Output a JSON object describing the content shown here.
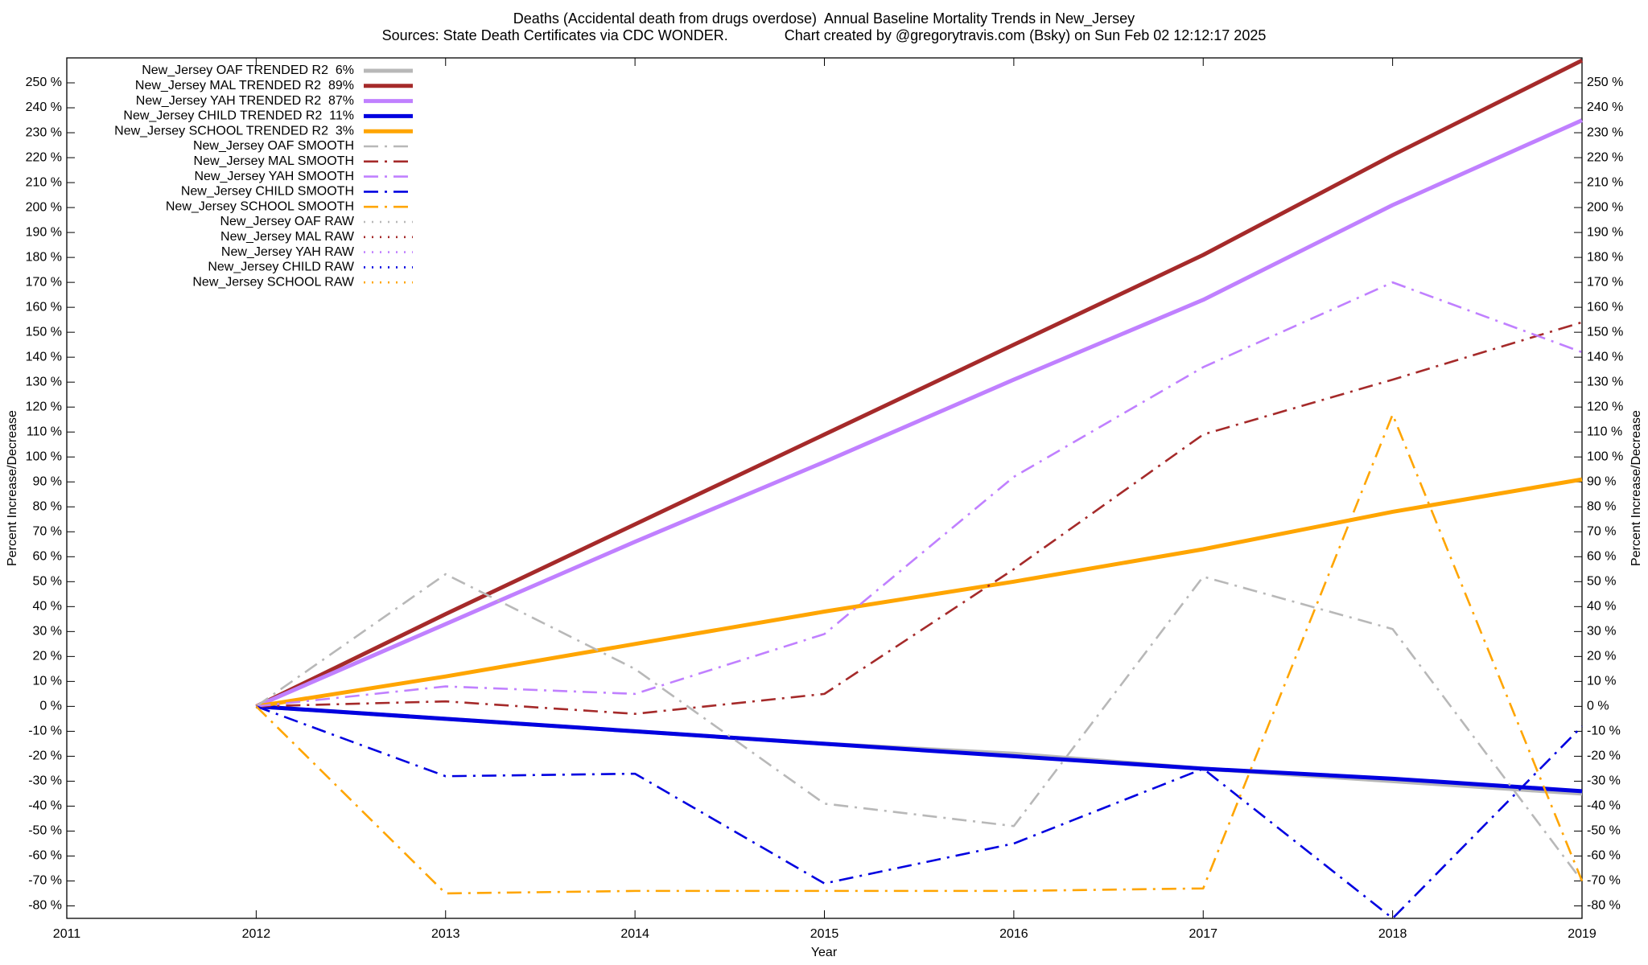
{
  "chart_data": {
    "type": "line",
    "title": "Deaths (Accidental death from drugs overdose)  Annual Baseline Mortality Trends in New_Jersey",
    "subtitle": "Sources: State Death Certificates via CDC WONDER.              Chart created by @gregorytravis.com (Bsky) on Sun Feb 02 12:12:17 2025",
    "x_label": "Year",
    "y_label": "Percent Increase/Decrease",
    "x": [
      2012,
      2013,
      2014,
      2015,
      2016,
      2017,
      2018,
      2019
    ],
    "xlim": [
      2011,
      2019
    ],
    "xticks": [
      2011,
      2012,
      2013,
      2014,
      2015,
      2016,
      2017,
      2018,
      2019
    ],
    "ylim": [
      -85,
      260
    ],
    "yticks": [
      {
        "value": -80,
        "label": "-80 %"
      },
      {
        "value": -70,
        "label": "-70 %"
      },
      {
        "value": -60,
        "label": "-60 %"
      },
      {
        "value": -50,
        "label": "-50 %"
      },
      {
        "value": -40,
        "label": "-40 %"
      },
      {
        "value": -30,
        "label": "-30 %"
      },
      {
        "value": -20,
        "label": "-20 %"
      },
      {
        "value": -10,
        "label": "-10 %"
      },
      {
        "value": 0,
        "label": "0 %"
      },
      {
        "value": 10,
        "label": "10 %"
      },
      {
        "value": 20,
        "label": "20 %"
      },
      {
        "value": 30,
        "label": "30 %"
      },
      {
        "value": 40,
        "label": "40 %"
      },
      {
        "value": 50,
        "label": "50 %"
      },
      {
        "value": 60,
        "label": "60 %"
      },
      {
        "value": 70,
        "label": "70 %"
      },
      {
        "value": 80,
        "label": "80 %"
      },
      {
        "value": 90,
        "label": "90 %"
      },
      {
        "value": 100,
        "label": "100 %"
      },
      {
        "value": 110,
        "label": "110 %"
      },
      {
        "value": 120,
        "label": "120 %"
      },
      {
        "value": 130,
        "label": "130 %"
      },
      {
        "value": 140,
        "label": "140 %"
      },
      {
        "value": 150,
        "label": "150 %"
      },
      {
        "value": 160,
        "label": "160 %"
      },
      {
        "value": 170,
        "label": "170 %"
      },
      {
        "value": 180,
        "label": "180 %"
      },
      {
        "value": 190,
        "label": "190 %"
      },
      {
        "value": 200,
        "label": "200 %"
      },
      {
        "value": 210,
        "label": "210 %"
      },
      {
        "value": 220,
        "label": "220 %"
      },
      {
        "value": 230,
        "label": "230 %"
      },
      {
        "value": 240,
        "label": "240 %"
      },
      {
        "value": 250,
        "label": "250 %"
      }
    ],
    "grid": false,
    "legend": "upper left",
    "series": [
      {
        "name": "New_Jersey OAF TRENDED R2  6%",
        "color": "#b8b8b8",
        "style": "solid",
        "values": [
          0,
          -5,
          -10,
          -15,
          -19,
          -25,
          -30,
          -35
        ]
      },
      {
        "name": "New_Jersey MAL TRENDED R2  89%",
        "color": "#a52a2a",
        "style": "solid",
        "values": [
          0,
          37,
          73,
          109,
          145,
          181,
          221,
          259
        ]
      },
      {
        "name": "New_Jersey YAH TRENDED R2  87%",
        "color": "#c080ff",
        "style": "solid",
        "values": [
          0,
          33,
          66,
          98,
          131,
          163,
          201,
          235
        ]
      },
      {
        "name": "New_Jersey CHILD TRENDED R2  11%",
        "color": "#0000e0",
        "style": "solid",
        "values": [
          0,
          -5,
          -10,
          -15,
          -20,
          -25,
          -29,
          -34
        ]
      },
      {
        "name": "New_Jersey SCHOOL TRENDED R2  3%",
        "color": "#ffa500",
        "style": "solid",
        "values": [
          0,
          12,
          25,
          38,
          50,
          63,
          78,
          91
        ]
      },
      {
        "name": "New_Jersey OAF SMOOTH",
        "color": "#b8b8b8",
        "style": "dashed",
        "values": [
          0,
          53,
          15,
          -39,
          -48,
          52,
          31,
          -70
        ]
      },
      {
        "name": "New_Jersey MAL SMOOTH",
        "color": "#a52a2a",
        "style": "dashed",
        "values": [
          0,
          2,
          -3,
          5,
          55,
          109,
          131,
          154
        ]
      },
      {
        "name": "New_Jersey YAH SMOOTH",
        "color": "#c080ff",
        "style": "dashed",
        "values": [
          0,
          8,
          5,
          29,
          92,
          136,
          170,
          142
        ]
      },
      {
        "name": "New_Jersey CHILD SMOOTH",
        "color": "#0000e0",
        "style": "dashed",
        "values": [
          0,
          -28,
          -27,
          -71,
          -55,
          -25,
          -85,
          -8
        ]
      },
      {
        "name": "New_Jersey SCHOOL SMOOTH",
        "color": "#ffa500",
        "style": "dashed",
        "values": [
          0,
          -75,
          -74,
          -74,
          -74,
          -73,
          117,
          -70
        ]
      },
      {
        "name": "New_Jersey OAF RAW",
        "color": "#b8b8b8",
        "style": "dotted",
        "values": [
          null,
          null,
          null,
          null,
          null,
          null,
          null,
          null
        ]
      },
      {
        "name": "New_Jersey MAL RAW",
        "color": "#a52a2a",
        "style": "dotted",
        "values": [
          null,
          null,
          null,
          null,
          null,
          null,
          null,
          null
        ]
      },
      {
        "name": "New_Jersey YAH RAW",
        "color": "#c080ff",
        "style": "dotted",
        "values": [
          null,
          null,
          null,
          null,
          null,
          null,
          null,
          null
        ]
      },
      {
        "name": "New_Jersey CHILD RAW",
        "color": "#0000e0",
        "style": "dotted",
        "values": [
          null,
          null,
          null,
          null,
          null,
          null,
          null,
          null
        ]
      },
      {
        "name": "New_Jersey SCHOOL RAW",
        "color": "#ffa500",
        "style": "dotted",
        "values": [
          null,
          null,
          null,
          null,
          null,
          null,
          null,
          null
        ]
      }
    ]
  }
}
